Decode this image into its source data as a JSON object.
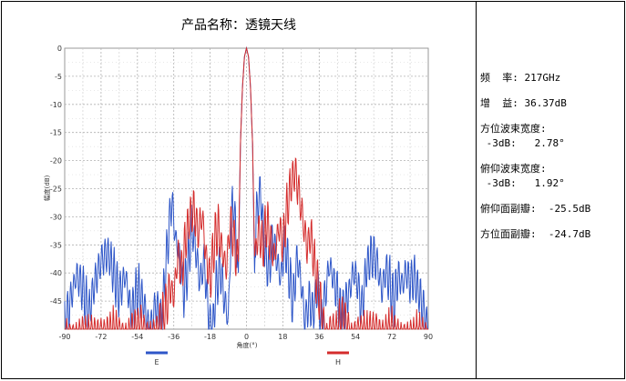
{
  "chart_data": {
    "type": "line",
    "title": "产品名称：透镜天线",
    "xlabel": "角度(°)",
    "ylabel": "幅度(dB)",
    "xlim": [
      -90,
      90
    ],
    "ylim": [
      -50,
      0
    ],
    "x_ticks": [
      "-90",
      "-72",
      "-54",
      "-36",
      "-18",
      "0",
      "18",
      "36",
      "54",
      "72",
      "90"
    ],
    "y_ticks": [
      "0",
      "-5",
      "-10",
      "-15",
      "-20",
      "-25",
      "-30",
      "-35",
      "-40",
      "-45"
    ],
    "grid": true,
    "legend_placement": "bottom",
    "series": [
      {
        "name": "E",
        "color": "#2e56c8",
        "points": [
          [
            -90,
            -48
          ],
          [
            -87,
            -43
          ],
          [
            -84,
            -39
          ],
          [
            -81,
            -41
          ],
          [
            -78,
            -46
          ],
          [
            -75,
            -40
          ],
          [
            -72,
            -36
          ],
          [
            -69,
            -35
          ],
          [
            -66,
            -38
          ],
          [
            -63,
            -42
          ],
          [
            -60,
            -39
          ],
          [
            -57,
            -46
          ],
          [
            -54,
            -41
          ],
          [
            -51,
            -44
          ],
          [
            -48,
            -49
          ],
          [
            -45,
            -44
          ],
          [
            -42,
            -47
          ],
          [
            -39,
            -33
          ],
          [
            -37,
            -25
          ],
          [
            -35,
            -33
          ],
          [
            -33,
            -36
          ],
          [
            -31,
            -42
          ],
          [
            -29,
            -37
          ],
          [
            -27,
            -30
          ],
          [
            -25,
            -35
          ],
          [
            -23,
            -40
          ],
          [
            -21,
            -36
          ],
          [
            -19,
            -45
          ],
          [
            -17,
            -50
          ],
          [
            -15,
            -41
          ],
          [
            -13,
            -37
          ],
          [
            -11,
            -43
          ],
          [
            -9,
            -47
          ],
          [
            -7,
            -25
          ],
          [
            -5,
            -32
          ],
          [
            -4,
            -40
          ],
          [
            -3,
            -17
          ],
          [
            -2,
            -7
          ],
          [
            -1,
            -1.5
          ],
          [
            0,
            0
          ],
          [
            1,
            -1.5
          ],
          [
            2,
            -7
          ],
          [
            3,
            -17
          ],
          [
            4,
            -40
          ],
          [
            5,
            -27
          ],
          [
            7,
            -24
          ],
          [
            9,
            -35
          ],
          [
            11,
            -38
          ],
          [
            13,
            -32
          ],
          [
            15,
            -36
          ],
          [
            17,
            -40
          ],
          [
            19,
            -33
          ],
          [
            21,
            -38
          ],
          [
            23,
            -44
          ],
          [
            25,
            -36
          ],
          [
            27,
            -40
          ],
          [
            29,
            -47
          ],
          [
            31,
            -43
          ],
          [
            33,
            -46
          ],
          [
            35,
            -41
          ],
          [
            37,
            -47
          ],
          [
            39,
            -42
          ],
          [
            41,
            -37
          ],
          [
            43,
            -40
          ],
          [
            45,
            -42
          ],
          [
            47,
            -47
          ],
          [
            49,
            -44
          ],
          [
            51,
            -42
          ],
          [
            53,
            -38
          ],
          [
            55,
            -40
          ],
          [
            57,
            -45
          ],
          [
            59,
            -39
          ],
          [
            61,
            -36
          ],
          [
            63,
            -35
          ],
          [
            65,
            -37
          ],
          [
            67,
            -42
          ],
          [
            69,
            -38
          ],
          [
            71,
            -40
          ],
          [
            73,
            -44
          ],
          [
            75,
            -39
          ],
          [
            77,
            -41
          ],
          [
            79,
            -38
          ],
          [
            81,
            -40
          ],
          [
            83,
            -39
          ],
          [
            85,
            -42
          ],
          [
            87,
            -44
          ],
          [
            89,
            -47
          ],
          [
            90,
            -49
          ]
        ]
      },
      {
        "name": "H",
        "color": "#d42c2c",
        "points": [
          [
            -90,
            -50
          ],
          [
            -78,
            -50
          ],
          [
            -72,
            -49
          ],
          [
            -68,
            -50
          ],
          [
            -64,
            -49
          ],
          [
            -60,
            -50
          ],
          [
            -56,
            -49
          ],
          [
            -52,
            -48
          ],
          [
            -50,
            -50
          ],
          [
            -44,
            -49
          ],
          [
            -40,
            -45
          ],
          [
            -38,
            -41
          ],
          [
            -36,
            -43
          ],
          [
            -34,
            -35
          ],
          [
            -32,
            -38
          ],
          [
            -30,
            -32
          ],
          [
            -28,
            -29
          ],
          [
            -26,
            -27
          ],
          [
            -24,
            -31
          ],
          [
            -22,
            -28
          ],
          [
            -20,
            -36
          ],
          [
            -18,
            -40
          ],
          [
            -16,
            -33
          ],
          [
            -14,
            -30
          ],
          [
            -12,
            -35
          ],
          [
            -10,
            -38
          ],
          [
            -8,
            -29
          ],
          [
            -6,
            -33
          ],
          [
            -4,
            -38
          ],
          [
            -3,
            -17
          ],
          [
            -2,
            -7
          ],
          [
            -1,
            -1.5
          ],
          [
            0,
            0
          ],
          [
            1,
            -1.5
          ],
          [
            2,
            -7
          ],
          [
            3,
            -17
          ],
          [
            4,
            -37
          ],
          [
            6,
            -31
          ],
          [
            8,
            -34
          ],
          [
            10,
            -29
          ],
          [
            12,
            -33
          ],
          [
            14,
            -36
          ],
          [
            16,
            -30
          ],
          [
            18,
            -33
          ],
          [
            20,
            -27
          ],
          [
            22,
            -23
          ],
          [
            24,
            -20.5
          ],
          [
            26,
            -24
          ],
          [
            28,
            -29
          ],
          [
            30,
            -34
          ],
          [
            32,
            -32
          ],
          [
            34,
            -38
          ],
          [
            36,
            -42
          ],
          [
            38,
            -47
          ],
          [
            40,
            -50
          ],
          [
            42,
            -48
          ],
          [
            44,
            -50
          ],
          [
            48,
            -46
          ],
          [
            50,
            -48
          ],
          [
            52,
            -50
          ],
          [
            56,
            -49
          ],
          [
            60,
            -50
          ],
          [
            64,
            -48
          ],
          [
            68,
            -50
          ],
          [
            72,
            -49
          ],
          [
            76,
            -50
          ],
          [
            90,
            -50
          ]
        ]
      }
    ]
  },
  "info": {
    "frequency_label": "频  率:",
    "frequency_value": "217GHz",
    "gain_label": "增  益:",
    "gain_value": "36.37dB",
    "az_beamwidth_label": "方位波束宽度:",
    "az_beamwidth_value": " -3dB:   2.78°",
    "el_beamwidth_label": "俯仰波束宽度:",
    "el_beamwidth_value": " -3dB:   1.92°",
    "el_sidelobe_label": "俯仰面副瓣:",
    "el_sidelobe_value": "-25.5dB",
    "az_sidelobe_label": "方位面副瓣:",
    "az_sidelobe_value": "-24.7dB"
  }
}
